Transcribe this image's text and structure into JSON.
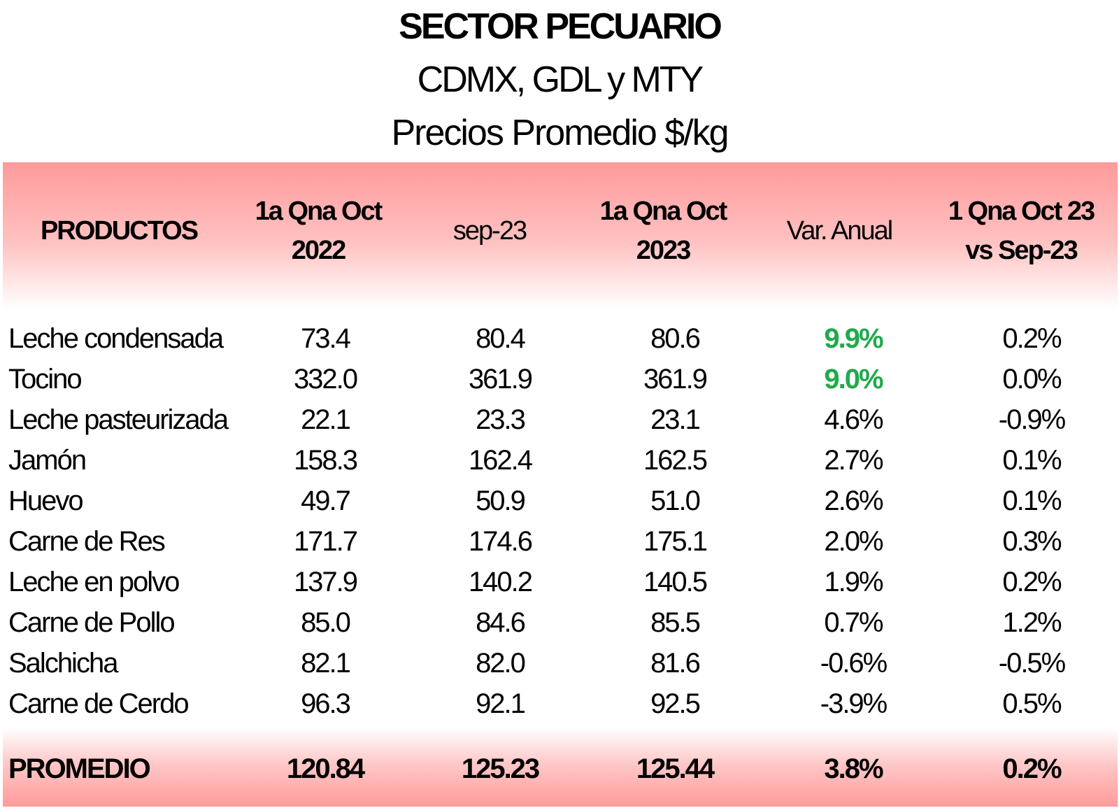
{
  "title": "SECTOR PECUARIO",
  "subtitle": "CDMX, GDL y MTY",
  "subtitle2": "Precios Promedio $/kg",
  "headers": {
    "productos": "PRODUCTOS",
    "col1_line1": "1a Qna Oct",
    "col1_line2": "2022",
    "col2": "sep-23",
    "col3_line1": "1a Qna Oct",
    "col3_line2": "2023",
    "col4": "Var. Anual",
    "col5_line1": "1 Qna Oct 23",
    "col5_line2": "vs Sep-23"
  },
  "rows": [
    {
      "product": "Leche condensada",
      "oct2022": "73.4",
      "sep23": "80.4",
      "oct2023": "80.6",
      "var_anual": "9.9%",
      "vs_sep": "0.2%"
    },
    {
      "product": "Tocino",
      "oct2022": "332.0",
      "sep23": "361.9",
      "oct2023": "361.9",
      "var_anual": "9.0%",
      "vs_sep": "0.0%"
    },
    {
      "product": "Leche pasteurizada",
      "oct2022": "22.1",
      "sep23": "23.3",
      "oct2023": "23.1",
      "var_anual": "4.6%",
      "vs_sep": "-0.9%"
    },
    {
      "product": "Jamón",
      "oct2022": "158.3",
      "sep23": "162.4",
      "oct2023": "162.5",
      "var_anual": "2.7%",
      "vs_sep": "0.1%"
    },
    {
      "product": "Huevo",
      "oct2022": "49.7",
      "sep23": "50.9",
      "oct2023": "51.0",
      "var_anual": "2.6%",
      "vs_sep": "0.1%"
    },
    {
      "product": "Carne de Res",
      "oct2022": "171.7",
      "sep23": "174.6",
      "oct2023": "175.1",
      "var_anual": "2.0%",
      "vs_sep": "0.3%"
    },
    {
      "product": "Leche en polvo",
      "oct2022": "137.9",
      "sep23": "140.2",
      "oct2023": "140.5",
      "var_anual": "1.9%",
      "vs_sep": "0.2%"
    },
    {
      "product": "Carne de Pollo",
      "oct2022": "85.0",
      "sep23": "84.6",
      "oct2023": "85.5",
      "var_anual": "0.7%",
      "vs_sep": "1.2%"
    },
    {
      "product": "Salchicha",
      "oct2022": "82.1",
      "sep23": "82.0",
      "oct2023": "81.6",
      "var_anual": "-0.6%",
      "vs_sep": "-0.5%"
    },
    {
      "product": "Carne de Cerdo",
      "oct2022": "96.3",
      "sep23": "92.1",
      "oct2023": "92.5",
      "var_anual": "-3.9%",
      "vs_sep": "0.5%"
    }
  ],
  "footer": {
    "label": "PROMEDIO",
    "oct2022": "120.84",
    "sep23": "125.23",
    "oct2023": "125.44",
    "var_anual": "3.8%",
    "vs_sep": "0.2%"
  },
  "colors": {
    "highlight_green": "#1faa4b",
    "band_red": "#ff9a9a"
  }
}
